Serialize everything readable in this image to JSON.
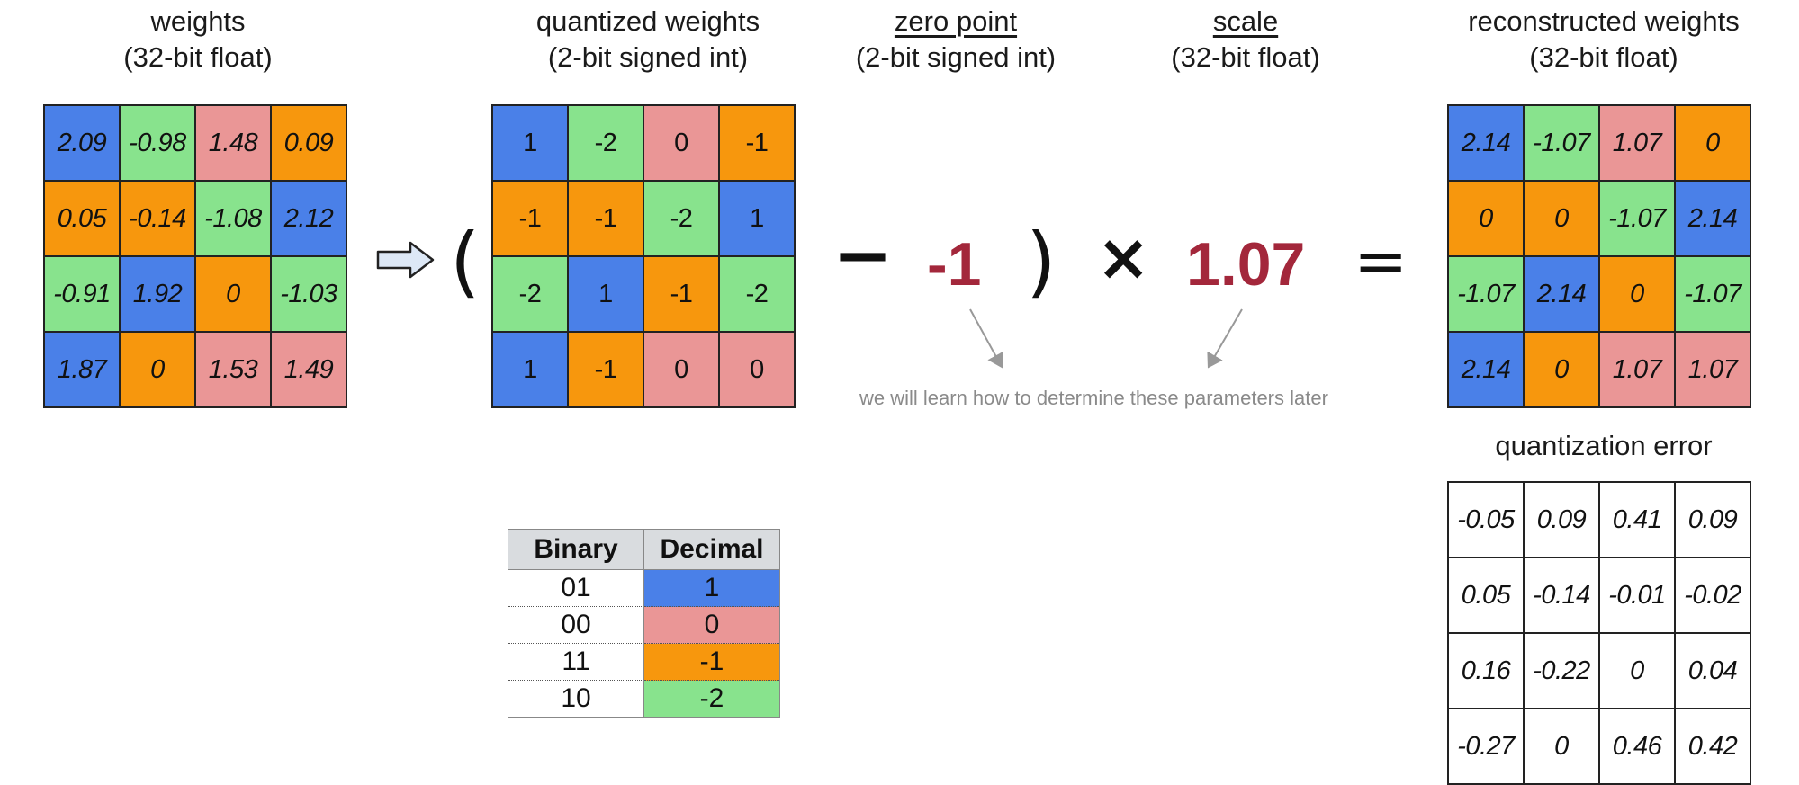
{
  "colors": {
    "blue": "#4a80e8",
    "green": "#88e38d",
    "pink": "#ea9696",
    "orange": "#f7970d",
    "accent": "#a3273b"
  },
  "titles": {
    "weights": {
      "line1": "weights",
      "line2": "(32-bit float)"
    },
    "quantized": {
      "line1": "quantized weights",
      "line2": "(2-bit signed int)"
    },
    "zero_point": {
      "line1": "zero point",
      "line2": "(2-bit signed int)"
    },
    "scale": {
      "line1": "scale",
      "line2": "(32-bit float)"
    },
    "reconstructed": {
      "line1": "reconstructed weights",
      "line2": "(32-bit float)"
    },
    "error": "quantization error"
  },
  "weights": [
    [
      "2.09",
      "-0.98",
      "1.48",
      "0.09"
    ],
    [
      "0.05",
      "-0.14",
      "-1.08",
      "2.12"
    ],
    [
      "-0.91",
      "1.92",
      "0",
      "-1.03"
    ],
    [
      "1.87",
      "0",
      "1.53",
      "1.49"
    ]
  ],
  "quantized": [
    [
      "1",
      "-2",
      "0",
      "-1"
    ],
    [
      "-1",
      "-1",
      "-2",
      "1"
    ],
    [
      "-2",
      "1",
      "-1",
      "-2"
    ],
    [
      "1",
      "-1",
      "0",
      "0"
    ]
  ],
  "reconstructed": [
    [
      "2.14",
      "-1.07",
      "1.07",
      "0"
    ],
    [
      "0",
      "0",
      "-1.07",
      "2.14"
    ],
    [
      "-1.07",
      "2.14",
      "0",
      "-1.07"
    ],
    [
      "2.14",
      "0",
      "1.07",
      "1.07"
    ]
  ],
  "error": [
    [
      "-0.05",
      "0.09",
      "0.41",
      "0.09"
    ],
    [
      "0.05",
      "-0.14",
      "-0.01",
      "-0.02"
    ],
    [
      "0.16",
      "-0.22",
      "0",
      "0.04"
    ],
    [
      "-0.27",
      "0",
      "0.46",
      "0.42"
    ]
  ],
  "equation": {
    "open_paren": "(",
    "minus": "−",
    "zero_point": "-1",
    "close_paren": ")",
    "times": "×",
    "scale": "1.07",
    "equals": "="
  },
  "note": "we will learn how to determine these parameters later",
  "encoding": {
    "headers": [
      "Binary",
      "Decimal"
    ],
    "rows": [
      {
        "binary": "01",
        "decimal": "1"
      },
      {
        "binary": "00",
        "decimal": "0"
      },
      {
        "binary": "11",
        "decimal": "-1"
      },
      {
        "binary": "10",
        "decimal": "-2"
      }
    ]
  }
}
